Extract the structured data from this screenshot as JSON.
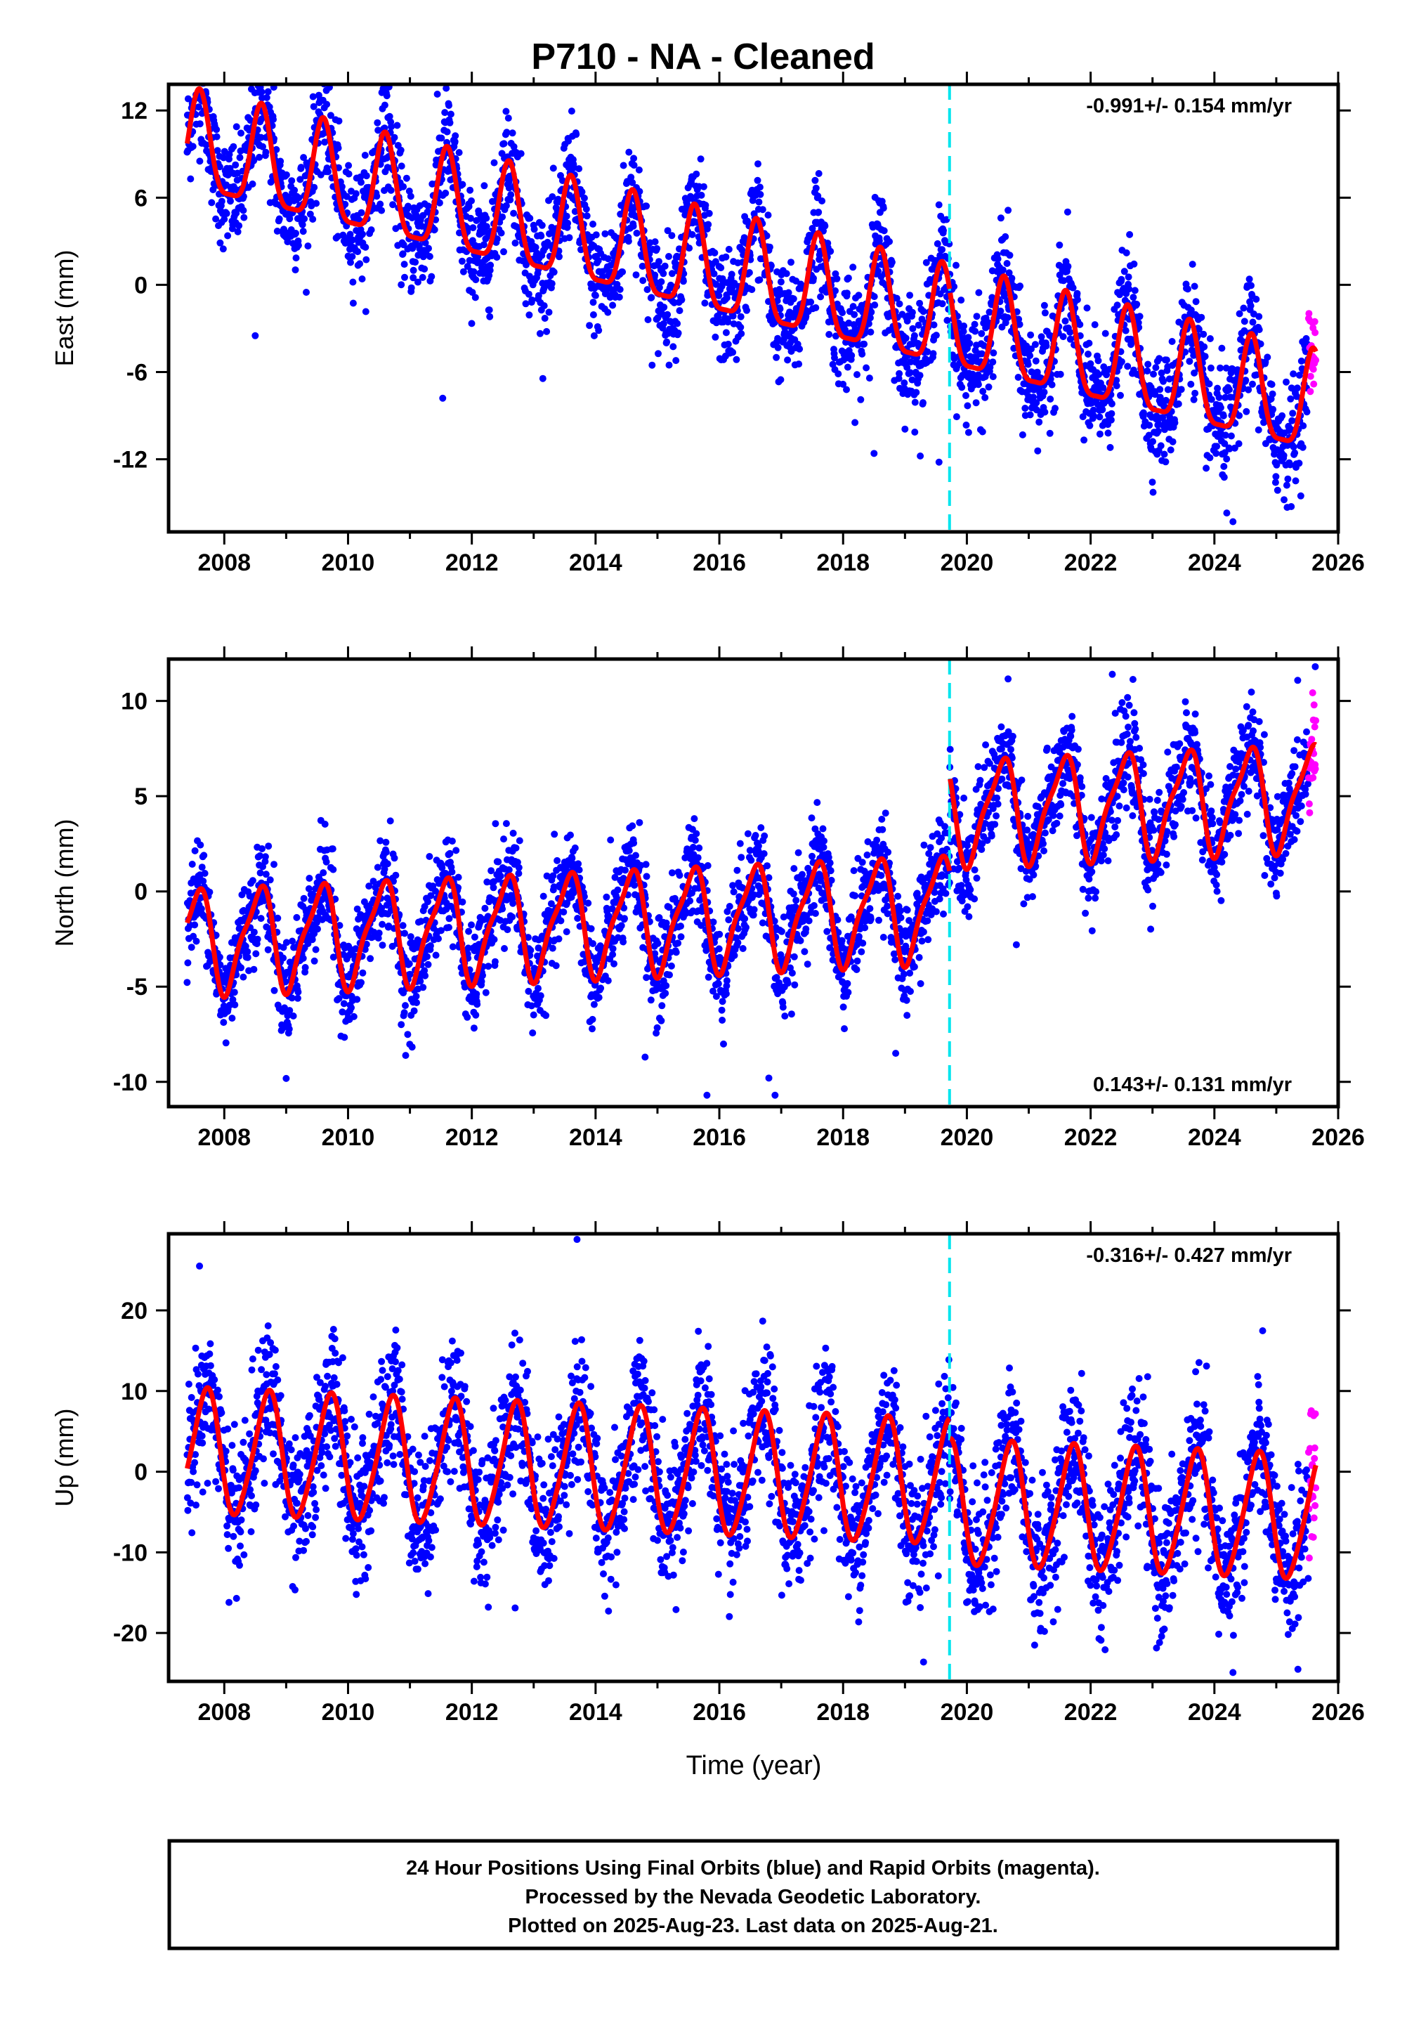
{
  "title": "P710  - NA - Cleaned",
  "x_axis_label": "Time (year)",
  "footer": {
    "line1": "24 Hour Positions Using Final Orbits (blue) and Rapid Orbits (magenta).",
    "line2": "Processed by the Nevada Geodetic Laboratory.",
    "line3": "Plotted on 2025-Aug-23. Last data on 2025-Aug-21."
  },
  "colors": {
    "final_orbits": "#0000ff",
    "rapid_orbits": "#ff00ff",
    "model_fit": "#ff0000",
    "equipment_change_line": "#00e5ee",
    "frame": "#000000"
  },
  "chart_data": [
    {
      "type": "scatter",
      "panel": "east",
      "ylabel": "East (mm)",
      "xlim": [
        2007.1,
        2026.0
      ],
      "ylim": [
        -17,
        13.8
      ],
      "xticks": [
        2008,
        2010,
        2012,
        2014,
        2016,
        2018,
        2020,
        2022,
        2024,
        2026
      ],
      "xticklabels": [
        "2008",
        "2010",
        "2012",
        "2014",
        "2016",
        "2018",
        "2020",
        "2022",
        "2024",
        "2026"
      ],
      "yticks": [
        12,
        6,
        0,
        -6,
        -12
      ],
      "yticklabels": [
        "12",
        "6",
        "0",
        "-6",
        "-12"
      ],
      "rate_label": "-0.991+/- 0.154 mm/yr",
      "rate_position": "top-right",
      "vertical_line_year": 2019.72,
      "data_start_year": 2007.4,
      "data_end_year": 2025.64,
      "rapid_start_year": 2025.52,
      "model": {
        "offset_mm": 9.3,
        "reference_year": 2007.5,
        "trend_mm_per_yr": -0.991,
        "annual_amplitude_mm": 3.4,
        "annual_phase_year": 0.6,
        "semiannual_amplitude_mm": 0.9,
        "semiannual_phase_year": 0.1,
        "step_at_vertical_line_mm": 0.0
      },
      "scatter_sigma_mm": 1.9,
      "outlier_samples": [
        {
          "x": 2008.5,
          "y": -3.5
        },
        {
          "x": 2011.53,
          "y": -7.8
        },
        {
          "x": 2018.5,
          "y": -11.6
        },
        {
          "x": 2019.55,
          "y": -12.2
        },
        {
          "x": 2024.3,
          "y": -16.3
        },
        {
          "x": 2024.2,
          "y": -15.7
        },
        {
          "x": 2008.8,
          "y": 13.6
        },
        {
          "x": 2007.7,
          "y": 13.3
        }
      ]
    },
    {
      "type": "scatter",
      "panel": "north",
      "ylabel": "North (mm)",
      "xlim": [
        2007.1,
        2026.0
      ],
      "ylim": [
        -11.3,
        12.2
      ],
      "xticks": [
        2008,
        2010,
        2012,
        2014,
        2016,
        2018,
        2020,
        2022,
        2024,
        2026
      ],
      "xticklabels": [
        "2008",
        "2010",
        "2012",
        "2014",
        "2016",
        "2018",
        "2020",
        "2022",
        "2024",
        "2026"
      ],
      "yticks": [
        10,
        5,
        0,
        -5,
        -10
      ],
      "yticklabels": [
        "10",
        "5",
        "0",
        "-5",
        "-10"
      ],
      "rate_label": "0.143+/- 0.131 mm/yr",
      "rate_position": "bottom-right",
      "vertical_line_year": 2019.72,
      "data_start_year": 2007.4,
      "data_end_year": 2025.64,
      "rapid_start_year": 2025.52,
      "model": {
        "offset_mm": -2.6,
        "reference_year": 2007.5,
        "trend_mm_per_yr": 0.143,
        "annual_amplitude_mm": 2.6,
        "annual_phase_year": 0.55,
        "semiannual_amplitude_mm": 0.7,
        "semiannual_phase_year": 0.2,
        "step_at_vertical_line_mm": 5.0
      },
      "scatter_sigma_mm": 1.3,
      "outlier_samples": [
        {
          "x": 2015.8,
          "y": -10.7
        },
        {
          "x": 2016.9,
          "y": -10.7
        },
        {
          "x": 2016.8,
          "y": -9.8
        },
        {
          "x": 2014.8,
          "y": -8.7
        },
        {
          "x": 2018.85,
          "y": -8.5
        },
        {
          "x": 2020.8,
          "y": -2.8
        },
        {
          "x": 2022.35,
          "y": 11.4
        },
        {
          "x": 2025.63,
          "y": 11.8
        }
      ]
    },
    {
      "type": "scatter",
      "panel": "up",
      "ylabel": "Up (mm)",
      "xlim": [
        2007.1,
        2026.0
      ],
      "ylim": [
        -26,
        29.5
      ],
      "xticks": [
        2008,
        2010,
        2012,
        2014,
        2016,
        2018,
        2020,
        2022,
        2024,
        2026
      ],
      "xticklabels": [
        "2008",
        "2010",
        "2012",
        "2014",
        "2016",
        "2018",
        "2020",
        "2022",
        "2024",
        "2026"
      ],
      "yticks": [
        20,
        10,
        0,
        -10,
        -20
      ],
      "yticklabels": [
        "20",
        "10",
        "0",
        "-10",
        "-20"
      ],
      "rate_label": "-0.316+/- 0.427 mm/yr",
      "rate_position": "top-right",
      "vertical_line_year": 2019.72,
      "data_start_year": 2007.4,
      "data_end_year": 2025.64,
      "rapid_start_year": 2025.52,
      "model": {
        "offset_mm": 2.4,
        "reference_year": 2007.5,
        "trend_mm_per_yr": -0.316,
        "annual_amplitude_mm": 7.6,
        "annual_phase_year": 0.7,
        "semiannual_amplitude_mm": 1.0,
        "semiannual_phase_year": 0.3,
        "step_at_vertical_line_mm": -2.5
      },
      "scatter_sigma_mm": 4.3,
      "outlier_samples": [
        {
          "x": 2013.7,
          "y": 28.8
        },
        {
          "x": 2007.6,
          "y": 25.5
        },
        {
          "x": 2012.7,
          "y": -16.9
        },
        {
          "x": 2015.3,
          "y": -17.1
        },
        {
          "x": 2019.3,
          "y": -23.6
        },
        {
          "x": 2024.3,
          "y": -24.9
        },
        {
          "x": 2025.35,
          "y": -24.5
        },
        {
          "x": 2024.7,
          "y": 11.8
        }
      ]
    }
  ]
}
